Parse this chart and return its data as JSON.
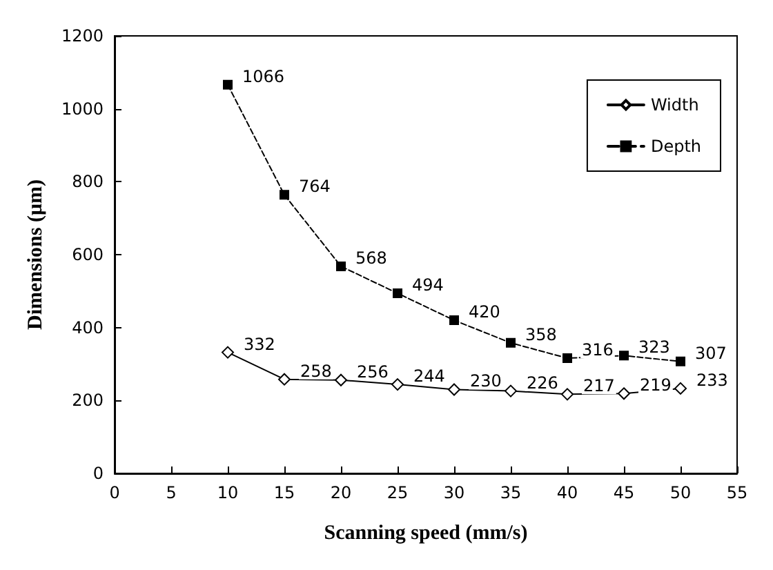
{
  "chart_data": {
    "type": "line",
    "xlabel": "Scanning speed (mm/s)",
    "ylabel": "Dimensions (μm)",
    "x": [
      10,
      15,
      20,
      25,
      30,
      35,
      40,
      45,
      50
    ],
    "series": [
      {
        "name": "Width",
        "color": "#000000",
        "marker": "diamond",
        "line_style": "solid",
        "values": [
          332,
          258,
          256,
          244,
          230,
          226,
          217,
          219,
          233
        ]
      },
      {
        "name": "Depth",
        "color": "#000000",
        "marker": "square",
        "line_style": "dashed",
        "values": [
          1066,
          764,
          568,
          494,
          420,
          358,
          316,
          323,
          307
        ]
      }
    ],
    "xlim": [
      0,
      55
    ],
    "xticks": [
      0,
      5,
      10,
      15,
      20,
      25,
      30,
      35,
      40,
      45,
      50,
      55
    ],
    "ylim": [
      0,
      1200
    ],
    "yticks": [
      0,
      200,
      400,
      600,
      800,
      1000,
      1200
    ],
    "grid": false,
    "legend": "top right",
    "data_labels": true
  }
}
